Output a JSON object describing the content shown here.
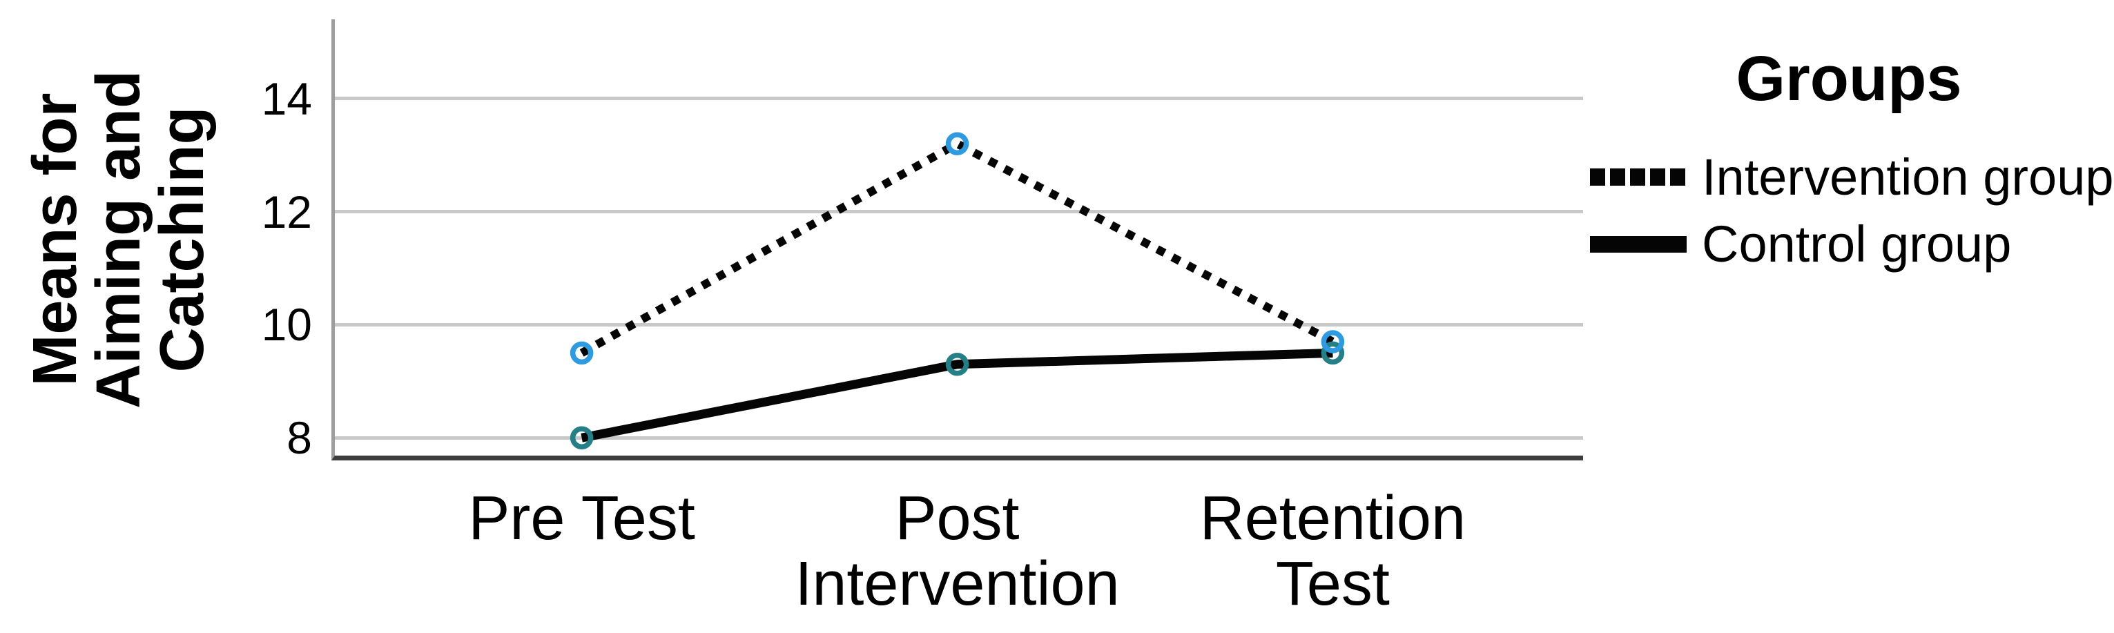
{
  "chart_data": {
    "type": "line",
    "legend_title": "Groups",
    "ylabel": "Means for\nAiming and\nCatching",
    "categories": [
      "Pre Test",
      "Post\nIntervention",
      "Retention\nTest"
    ],
    "yticks": [
      8,
      10,
      12,
      14
    ],
    "ylim": [
      7.6,
      15.4
    ],
    "grid": "horizontal",
    "legend_position": "right",
    "series": [
      {
        "name": "Intervention group",
        "line_style": "dotted",
        "line_color": "#050505",
        "marker_color": "#2f9ae0",
        "values": [
          9.5,
          13.2,
          9.7
        ]
      },
      {
        "name": "Control group",
        "line_style": "solid",
        "line_color": "#050505",
        "marker_color": "#247f87",
        "values": [
          8.0,
          9.3,
          9.5
        ]
      }
    ]
  },
  "colors": {
    "background": "#ffffff",
    "gridline": "#c8c8c8",
    "y_axis": "#9e9e9e",
    "x_axis": "#3d3d3d",
    "text": "#000000"
  }
}
